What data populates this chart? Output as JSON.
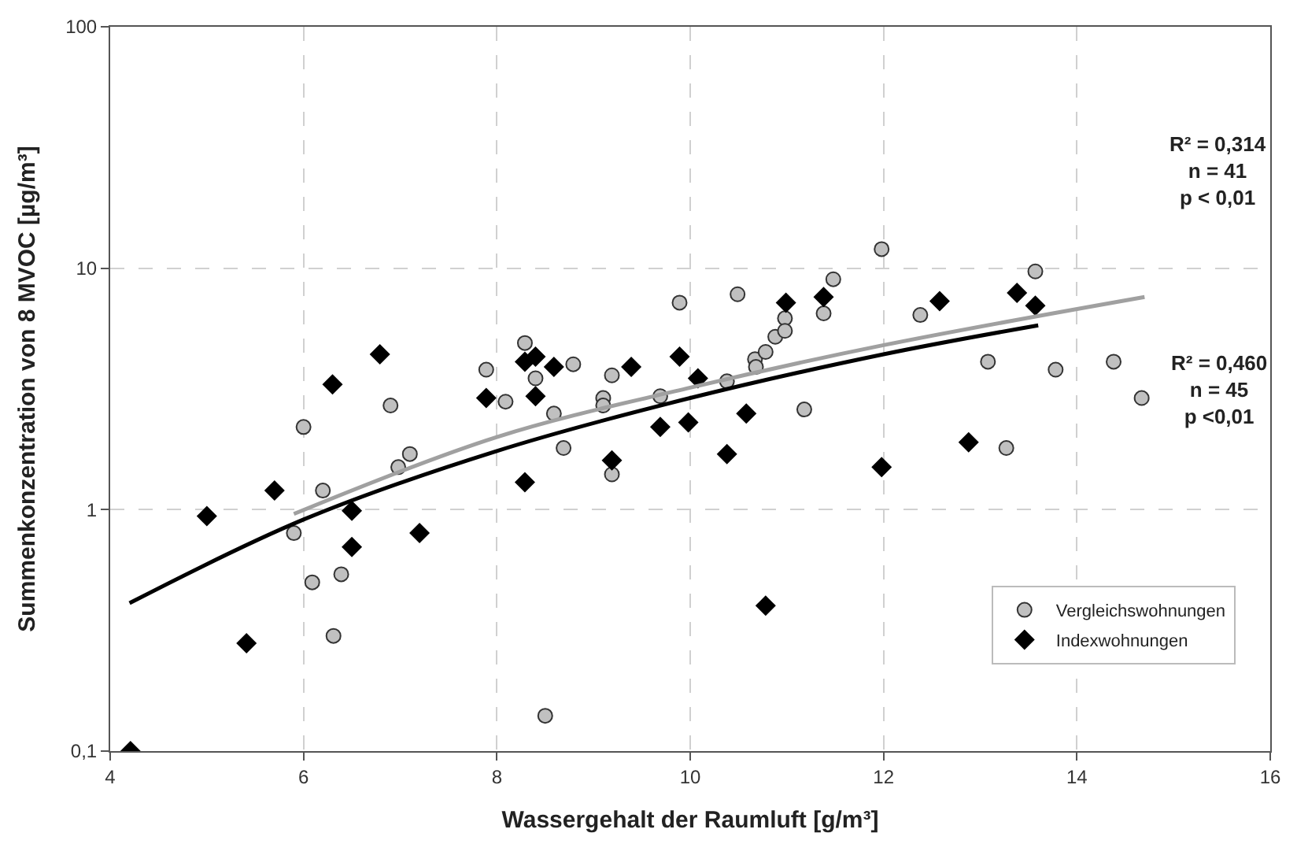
{
  "chart_data": {
    "type": "scatter",
    "xlabel": "Wassergehalt der Raumluft [g/m³]",
    "ylabel": "Summenkonzentration von 8 MVOC [µg/m³]",
    "xlim": [
      4,
      16
    ],
    "xticks": [
      4,
      6,
      8,
      10,
      12,
      14,
      16
    ],
    "ylim": [
      0.1,
      100
    ],
    "yticks": [
      {
        "value": 0.1,
        "label": "0,1"
      },
      1,
      10,
      100
    ],
    "log": "y",
    "grid": true,
    "legend": "bottom right",
    "annotations": [
      "R² = 0,314\nn = 41\np < 0,01",
      "R² = 0,460\nn = 45\np <0,01"
    ],
    "series": [
      {
        "name": "Vergleichswohnungen",
        "color": "#c0c0c0",
        "marker": "circle",
        "x": [
          7.89,
          8.09,
          8.29,
          8.4,
          8.59,
          8.69,
          8.79,
          8.5,
          9.1,
          9.1,
          9.19,
          9.19,
          9.69,
          9.89,
          10.38,
          10.49,
          10.67,
          10.68,
          10.78,
          10.88,
          10.98,
          10.98,
          11.18,
          11.38,
          11.48,
          6.0,
          5.9,
          6.2,
          6.09,
          6.31,
          6.39,
          6.9,
          6.98,
          7.1,
          11.98,
          12.38,
          13.57,
          13.08,
          13.78,
          14.38,
          13.27,
          14.67
        ],
        "values": [
          3.8,
          2.8,
          4.9,
          3.5,
          2.5,
          1.8,
          4.0,
          0.14,
          2.9,
          2.7,
          3.6,
          1.4,
          2.95,
          7.2,
          3.4,
          7.8,
          4.2,
          3.9,
          4.5,
          5.2,
          6.2,
          5.5,
          2.6,
          6.5,
          9.0,
          2.2,
          0.8,
          1.2,
          0.5,
          0.3,
          0.54,
          2.7,
          1.5,
          1.7,
          12,
          6.4,
          9.7,
          4.1,
          3.8,
          4.1,
          1.8,
          2.9
        ]
      },
      {
        "name": "Indexwohnungen",
        "color": "#000000",
        "marker": "diamond",
        "x": [
          4.21,
          5.0,
          5.41,
          5.7,
          6.3,
          6.79,
          6.5,
          6.5,
          7.2,
          7.89,
          8.29,
          8.4,
          8.4,
          8.59,
          8.29,
          9.19,
          9.39,
          9.69,
          9.89,
          9.98,
          10.08,
          10.38,
          10.58,
          10.78,
          10.99,
          11.38,
          12.58,
          13.38,
          13.57,
          12.88,
          11.98
        ],
        "values": [
          0.1,
          0.94,
          0.28,
          1.2,
          3.3,
          4.4,
          0.99,
          0.7,
          0.8,
          2.9,
          4.1,
          4.3,
          2.95,
          3.9,
          1.3,
          1.6,
          3.9,
          2.2,
          4.3,
          2.3,
          3.5,
          1.7,
          2.5,
          0.4,
          7.2,
          7.6,
          7.3,
          7.9,
          7.0,
          1.9,
          1.5
        ]
      },
      {
        "type": "line",
        "color": "#a0a0a0",
        "marker": "none",
        "x": [
          5.9,
          8,
          10,
          12,
          14.7
        ],
        "values": [
          0.96,
          2.0,
          3.2,
          4.8,
          7.6
        ]
      },
      {
        "type": "line",
        "color": "#000000",
        "marker": "none",
        "x": [
          4.2,
          6,
          8,
          10,
          12,
          13.6
        ],
        "values": [
          0.41,
          0.91,
          1.75,
          2.9,
          4.4,
          5.8
        ]
      }
    ]
  }
}
